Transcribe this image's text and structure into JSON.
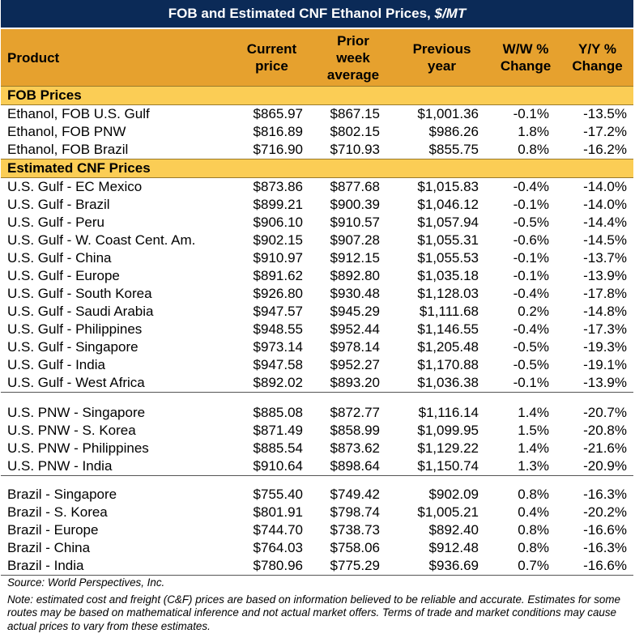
{
  "title": "FOB and Estimated CNF Ethanol Prices, ",
  "title_unit": "$/MT",
  "headers": {
    "product": "Product",
    "current": [
      "Current",
      "price"
    ],
    "prior": [
      "Prior",
      "week",
      "average"
    ],
    "previous": [
      "Previous",
      "year"
    ],
    "ww": [
      "W/W %",
      "Change"
    ],
    "yy": [
      "Y/Y %",
      "Change"
    ]
  },
  "sections": {
    "fob": "FOB Prices",
    "cnf": "Estimated CNF Prices"
  },
  "fob_rows": [
    {
      "product": "Ethanol, FOB U.S. Gulf",
      "current": "$865.97",
      "prior": "$867.15",
      "previous": "$1,001.36",
      "ww": "-0.1%",
      "yy": "-13.5%"
    },
    {
      "product": "Ethanol, FOB PNW",
      "current": "$816.89",
      "prior": "$802.15",
      "previous": "$986.26",
      "ww": "1.8%",
      "yy": "-17.2%"
    },
    {
      "product": "Ethanol, FOB Brazil",
      "current": "$716.90",
      "prior": "$710.93",
      "previous": "$855.75",
      "ww": "0.8%",
      "yy": "-16.2%"
    }
  ],
  "gulf_rows": [
    {
      "product": "U.S. Gulf - EC Mexico",
      "current": "$873.86",
      "prior": "$877.68",
      "previous": "$1,015.83",
      "ww": "-0.4%",
      "yy": "-14.0%"
    },
    {
      "product": "U.S. Gulf - Brazil",
      "current": "$899.21",
      "prior": "$900.39",
      "previous": "$1,046.12",
      "ww": "-0.1%",
      "yy": "-14.0%"
    },
    {
      "product": "U.S. Gulf - Peru",
      "current": "$906.10",
      "prior": "$910.57",
      "previous": "$1,057.94",
      "ww": "-0.5%",
      "yy": "-14.4%"
    },
    {
      "product": "U.S. Gulf - W. Coast Cent. Am.",
      "current": "$902.15",
      "prior": "$907.28",
      "previous": "$1,055.31",
      "ww": "-0.6%",
      "yy": "-14.5%"
    },
    {
      "product": "U.S. Gulf - China",
      "current": "$910.97",
      "prior": "$912.15",
      "previous": "$1,055.53",
      "ww": "-0.1%",
      "yy": "-13.7%"
    },
    {
      "product": "U.S. Gulf - Europe",
      "current": "$891.62",
      "prior": "$892.80",
      "previous": "$1,035.18",
      "ww": "-0.1%",
      "yy": "-13.9%"
    },
    {
      "product": "U.S. Gulf - South Korea",
      "current": "$926.80",
      "prior": "$930.48",
      "previous": "$1,128.03",
      "ww": "-0.4%",
      "yy": "-17.8%"
    },
    {
      "product": "U.S. Gulf - Saudi Arabia",
      "current": "$947.57",
      "prior": "$945.29",
      "previous": "$1,111.68",
      "ww": "0.2%",
      "yy": "-14.8%"
    },
    {
      "product": "U.S. Gulf - Philippines",
      "current": "$948.55",
      "prior": "$952.44",
      "previous": "$1,146.55",
      "ww": "-0.4%",
      "yy": "-17.3%"
    },
    {
      "product": "U.S. Gulf - Singapore",
      "current": "$973.14",
      "prior": "$978.14",
      "previous": "$1,205.48",
      "ww": "-0.5%",
      "yy": "-19.3%"
    },
    {
      "product": "U.S. Gulf - India",
      "current": "$947.58",
      "prior": "$952.27",
      "previous": "$1,170.88",
      "ww": "-0.5%",
      "yy": "-19.1%"
    },
    {
      "product": "U.S. Gulf - West Africa",
      "current": "$892.02",
      "prior": "$893.20",
      "previous": "$1,036.38",
      "ww": "-0.1%",
      "yy": "-13.9%"
    }
  ],
  "pnw_rows": [
    {
      "product": "U.S. PNW - Singapore",
      "current": "$885.08",
      "prior": "$872.77",
      "previous": "$1,116.14",
      "ww": "1.4%",
      "yy": "-20.7%"
    },
    {
      "product": "U.S. PNW - S. Korea",
      "current": "$871.49",
      "prior": "$858.99",
      "previous": "$1,099.95",
      "ww": "1.5%",
      "yy": "-20.8%"
    },
    {
      "product": "U.S. PNW - Philippines",
      "current": "$885.54",
      "prior": "$873.62",
      "previous": "$1,129.22",
      "ww": "1.4%",
      "yy": "-21.6%"
    },
    {
      "product": "U.S. PNW - India",
      "current": "$910.64",
      "prior": "$898.64",
      "previous": "$1,150.74",
      "ww": "1.3%",
      "yy": "-20.9%"
    }
  ],
  "brazil_rows": [
    {
      "product": "Brazil - Singapore",
      "current": "$755.40",
      "prior": "$749.42",
      "previous": "$902.09",
      "ww": "0.8%",
      "yy": "-16.3%"
    },
    {
      "product": "Brazil - S. Korea",
      "current": "$801.91",
      "prior": "$798.74",
      "previous": "$1,005.21",
      "ww": "0.4%",
      "yy": "-20.2%"
    },
    {
      "product": "Brazil - Europe",
      "current": "$744.70",
      "prior": "$738.73",
      "previous": "$892.40",
      "ww": "0.8%",
      "yy": "-16.6%"
    },
    {
      "product": "Brazil - China",
      "current": "$764.03",
      "prior": "$758.06",
      "previous": "$912.48",
      "ww": "0.8%",
      "yy": "-16.3%"
    },
    {
      "product": "Brazil - India",
      "current": "$780.96",
      "prior": "$775.29",
      "previous": "$936.69",
      "ww": "0.7%",
      "yy": "-16.6%"
    }
  ],
  "source": "Source: World Perspectives, Inc.",
  "note": "Note: estimated cost and freight (C&F) prices are based on information believed to be reliable and accurate. Estimates for some routes may be based on mathematical inference and not actual market offers. Terms of trade and market conditions may cause actual prices to vary from these estimates."
}
